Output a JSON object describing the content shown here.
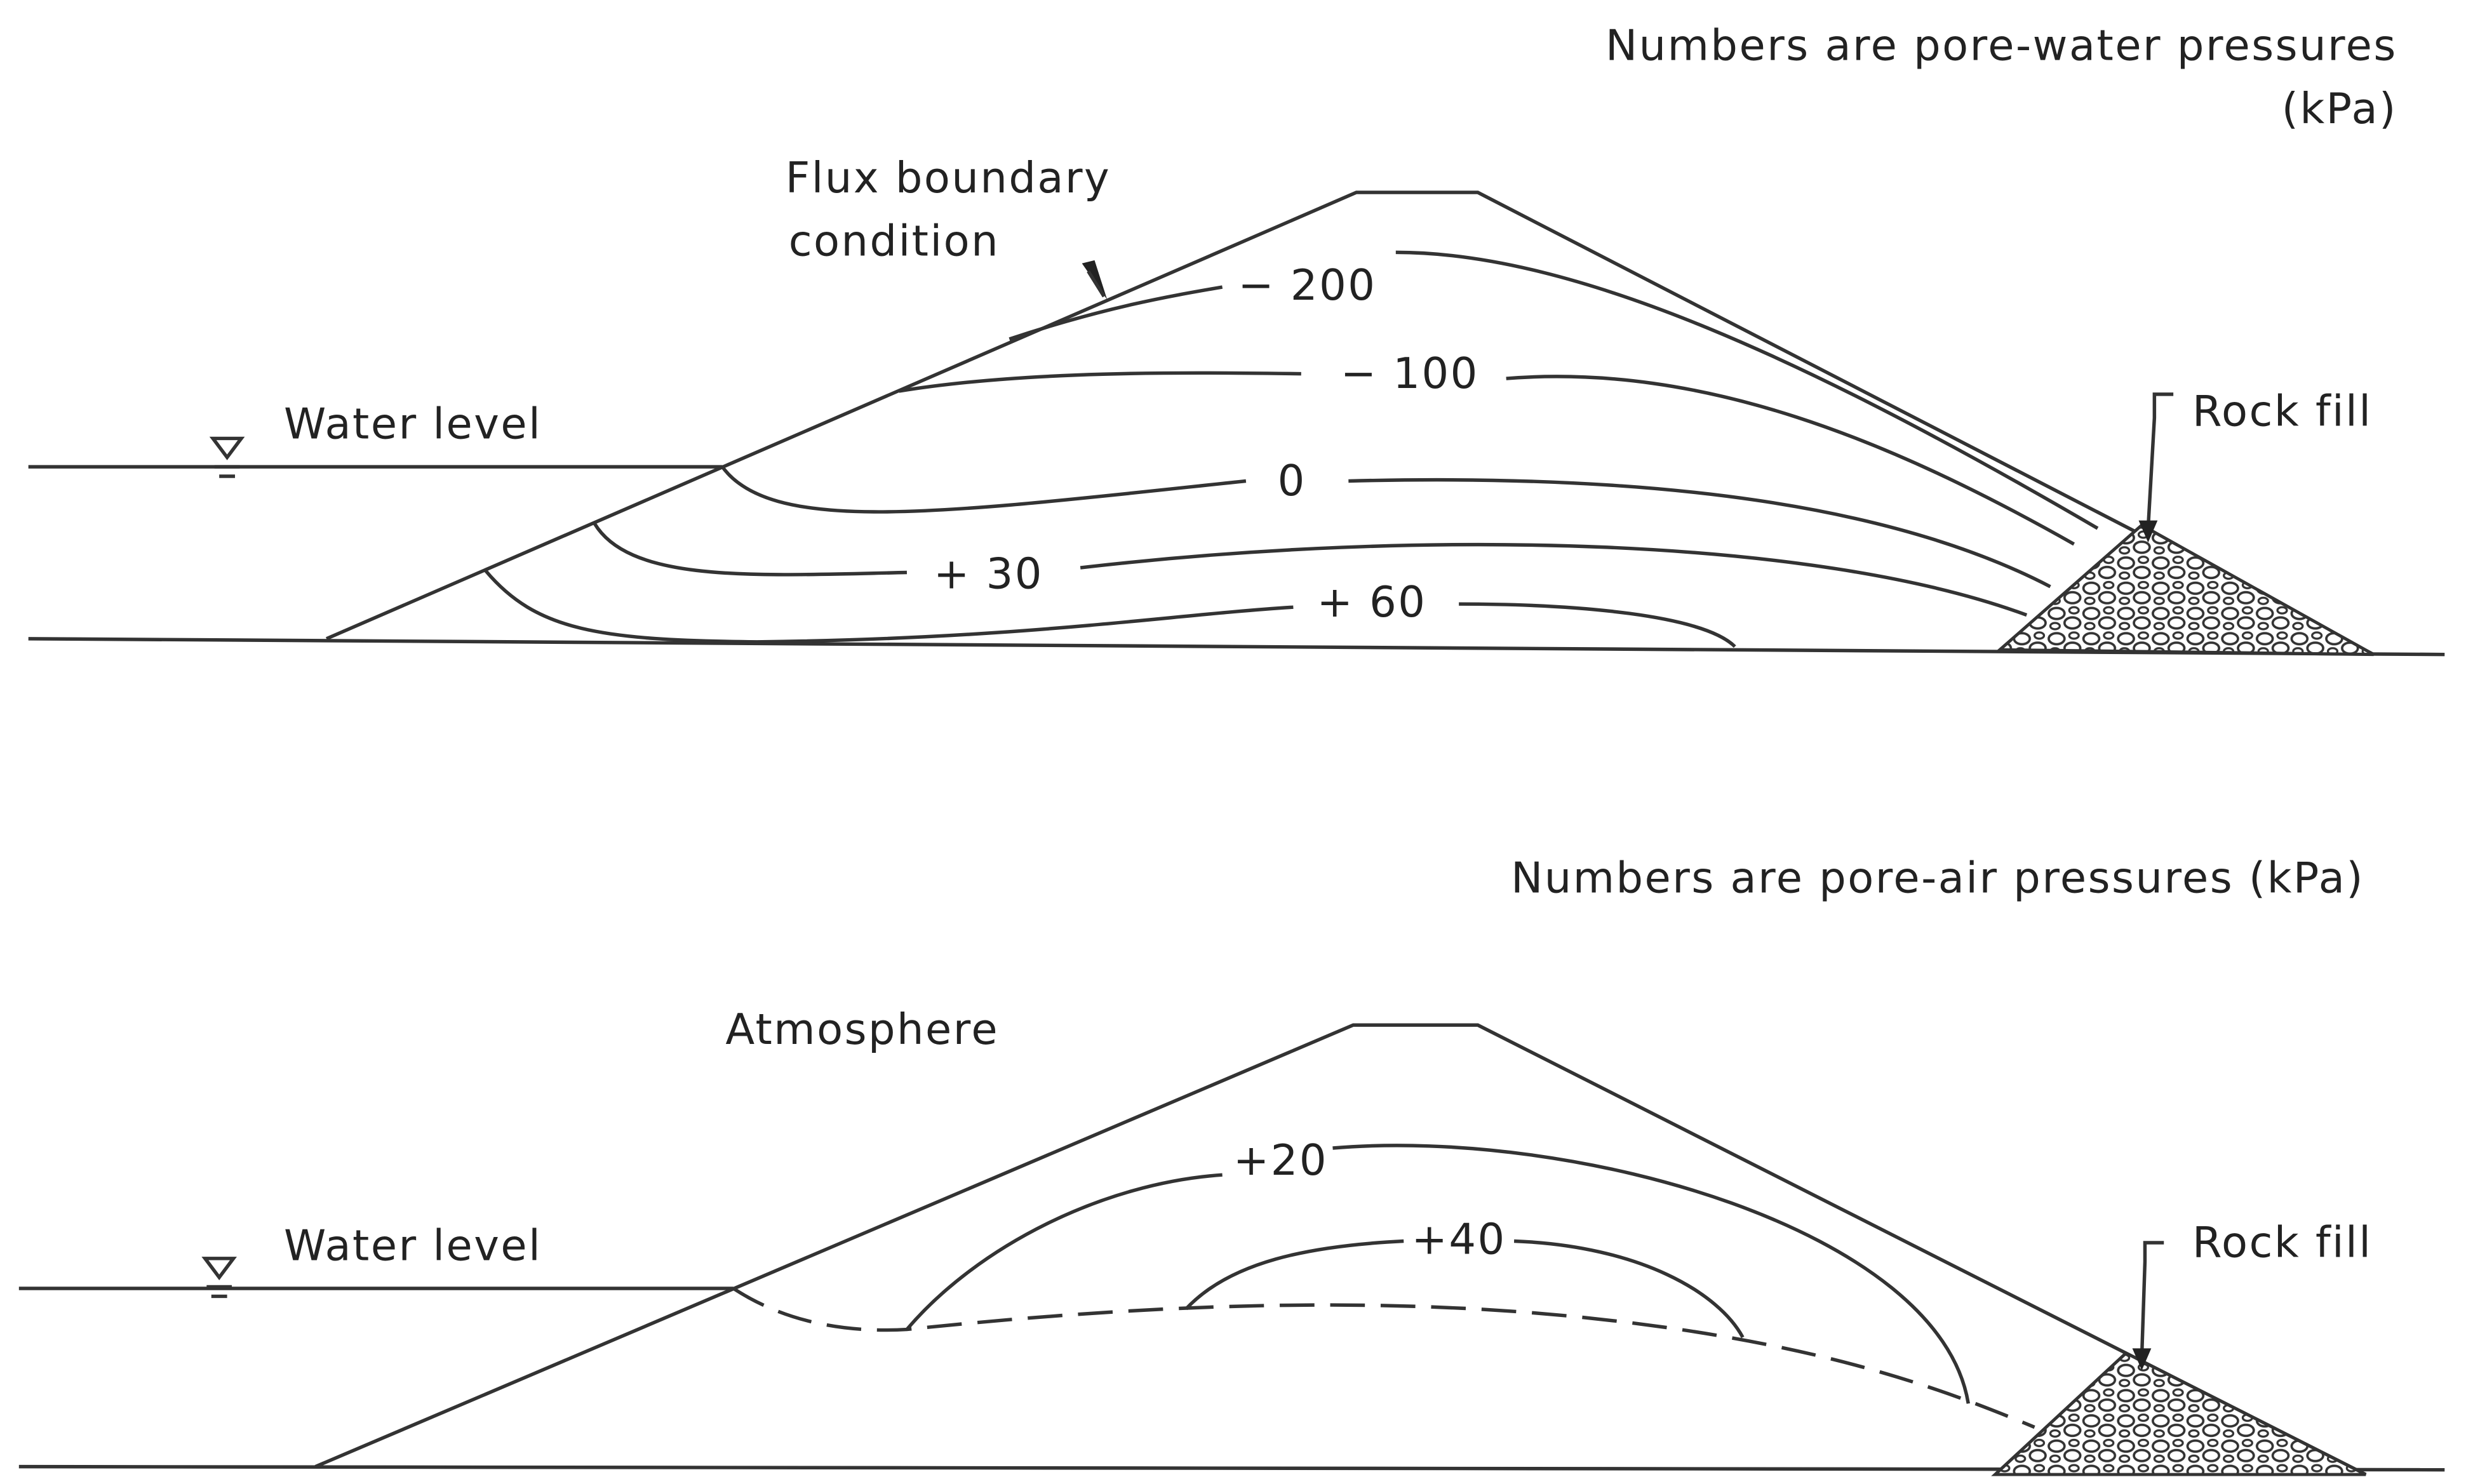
{
  "top": {
    "caption": [
      "Numbers are pore-water pressures",
      "(kPa)"
    ],
    "flux_label": [
      "Flux boundary",
      "condition"
    ],
    "water_level": "Water level",
    "rock_fill": "Rock fill",
    "contours": [
      "− 200",
      "− 100",
      "0",
      "+ 30",
      "+ 60"
    ]
  },
  "bottom": {
    "caption": "Numbers are pore-air pressures (kPa)",
    "atmosphere": "Atmosphere",
    "water_level": "Water level",
    "rock_fill": "Rock fill",
    "contours": [
      "+20",
      "+40"
    ]
  }
}
